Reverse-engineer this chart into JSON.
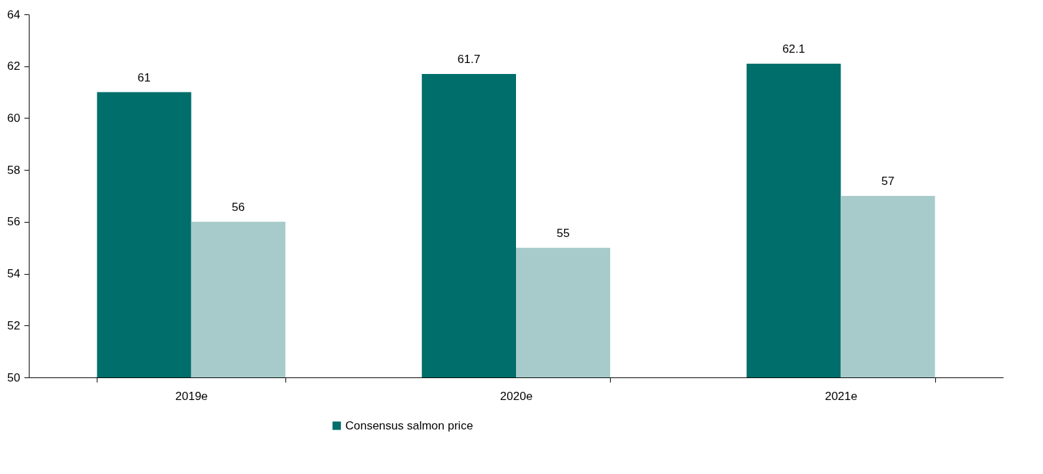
{
  "chart_data": {
    "type": "bar",
    "categories": [
      "2019e",
      "2020e",
      "2021e"
    ],
    "series": [
      {
        "name": "Consensus salmon price",
        "color": "#006e6a",
        "values": [
          61,
          61.7,
          62.1
        ]
      },
      {
        "color": "#a7cbcb",
        "values": [
          56,
          55,
          57
        ]
      }
    ],
    "ylim": [
      50,
      64
    ],
    "yticks": [
      50,
      52,
      54,
      56,
      58,
      60,
      62,
      64
    ],
    "grid": false,
    "legend": "bottom",
    "data_labels": true
  }
}
